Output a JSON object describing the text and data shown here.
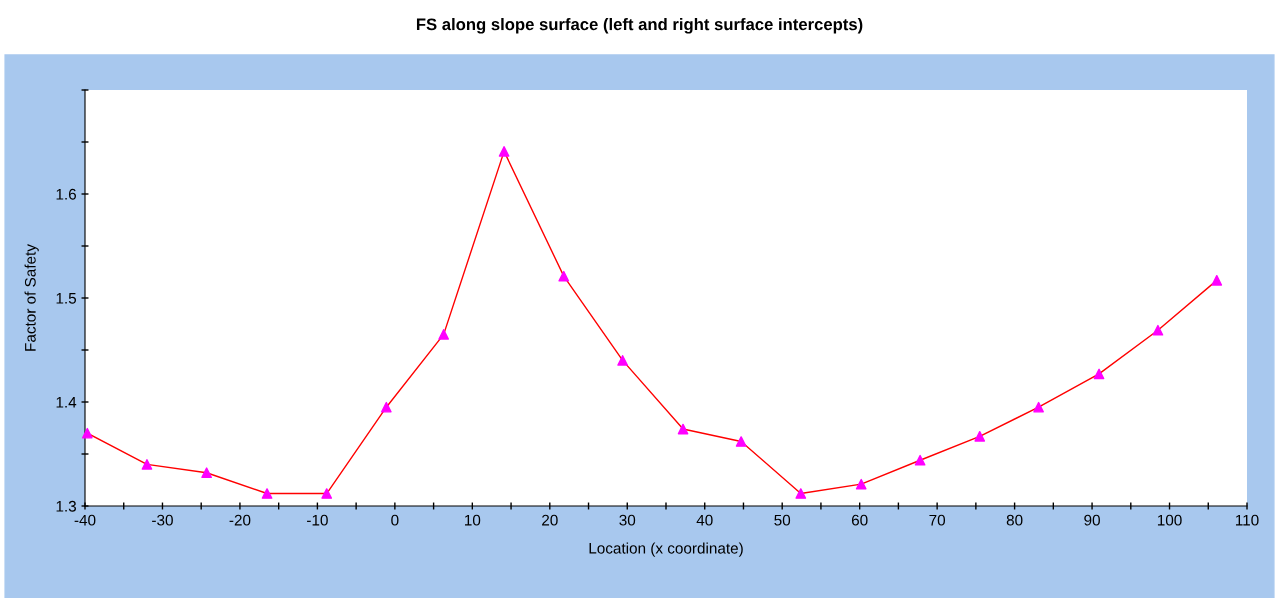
{
  "chart_data": {
    "type": "line",
    "title": "FS along slope surface (left and right surface intercepts)",
    "xlabel": "Location (x coordinate)",
    "ylabel": "Factor of Safety",
    "x": [
      -39.7,
      -32.0,
      -24.3,
      -16.5,
      -8.8,
      -1.1,
      6.3,
      14.1,
      21.8,
      29.4,
      37.2,
      44.7,
      52.4,
      60.2,
      67.8,
      75.5,
      83.1,
      90.9,
      98.5,
      106.1
    ],
    "series": [
      {
        "color": "#ff0000",
        "colors": [
          "#ff00ff",
          "#ff00ff",
          "#ff00ff",
          "#ff00ff",
          "#ff00ff",
          "#ff00ff",
          "#ff00ff",
          "#ff00ff",
          "#ff00ff",
          "#ff00ff",
          "#ff00ff",
          "#ff00ff",
          "#ff00ff",
          "#ff00ff",
          "#ff00ff",
          "#ff00ff",
          "#ff00ff",
          "#ff00ff",
          "#ff00ff",
          "#ff00ff"
        ],
        "values": [
          1.37,
          1.34,
          1.332,
          1.312,
          1.312,
          1.395,
          1.465,
          1.641,
          1.521,
          1.44,
          1.374,
          1.362,
          1.312,
          1.321,
          1.344,
          1.367,
          1.395,
          1.427,
          1.469,
          1.517
        ]
      }
    ],
    "marker": "triangle",
    "line_style": "solid",
    "grid": false,
    "legend": false,
    "xlim": [
      -40,
      110
    ],
    "xticks": [
      -40,
      {
        "value": -35,
        "label": null
      },
      -30,
      {
        "value": -25,
        "label": null
      },
      -20,
      {
        "value": -15,
        "label": null
      },
      -10,
      {
        "value": -5,
        "label": null
      },
      0,
      {
        "value": 5,
        "label": null
      },
      10,
      {
        "value": 15,
        "label": null
      },
      20,
      {
        "value": 25,
        "label": null
      },
      30,
      {
        "value": 35,
        "label": null
      },
      40,
      {
        "value": 45,
        "label": null
      },
      50,
      {
        "value": 55,
        "label": null
      },
      60,
      {
        "value": 65,
        "label": null
      },
      70,
      {
        "value": 75,
        "label": null
      },
      80,
      {
        "value": 85,
        "label": null
      },
      90,
      {
        "value": 95,
        "label": null
      },
      100,
      {
        "value": 105,
        "label": null
      },
      110
    ],
    "ylim": [
      1.3,
      1.7
    ],
    "yticks": [
      1.3,
      {
        "value": 1.35,
        "label": null
      },
      1.4,
      {
        "value": 1.45,
        "label": null
      },
      1.5,
      {
        "value": 1.55,
        "label": null
      },
      1.6,
      {
        "value": 1.65,
        "label": null
      },
      {
        "value": 1.7,
        "label": null
      }
    ]
  }
}
